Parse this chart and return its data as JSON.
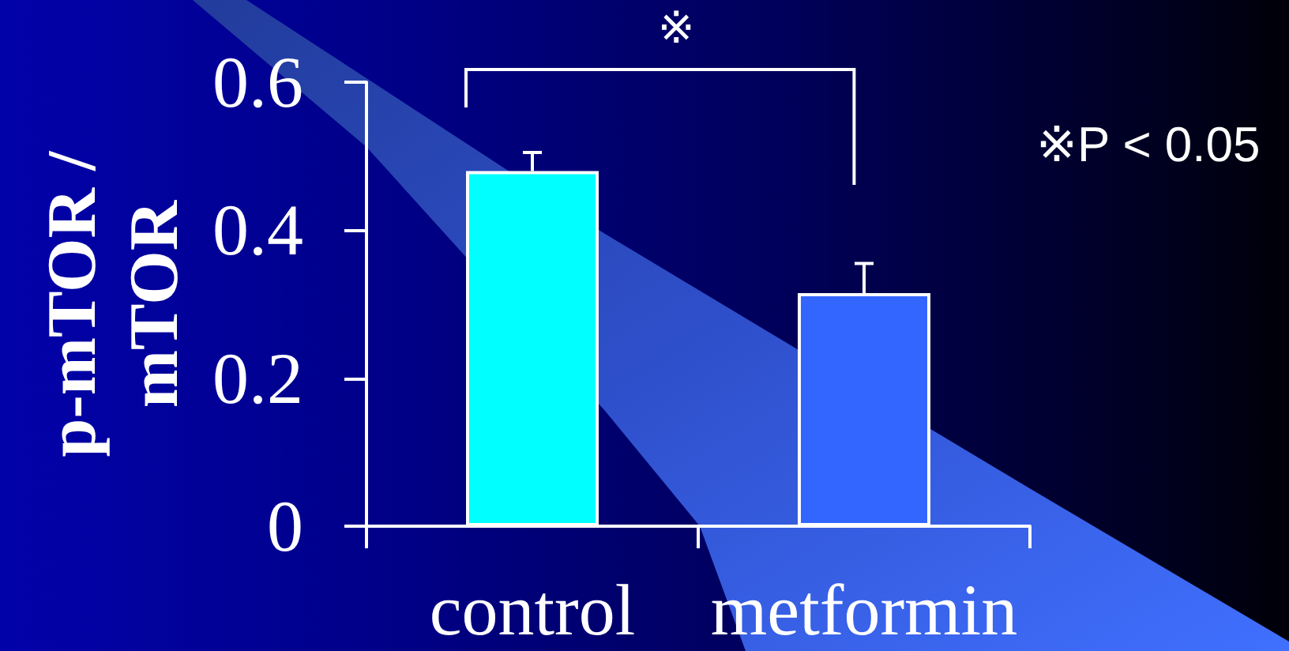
{
  "chart_data": {
    "type": "bar",
    "ylabel": "p-mTOR / mTOR",
    "categories": [
      "control",
      "metformin"
    ],
    "values": [
      0.48,
      0.315
    ],
    "colors": [
      "#00ffff",
      "#3366ff"
    ],
    "errors": [
      0.025,
      0.04
    ],
    "ylim": [
      0,
      0.6
    ],
    "yticks": [
      0,
      0.2,
      0.4,
      0.6
    ],
    "annotations": [
      "※",
      "※P < 0.05"
    ]
  }
}
